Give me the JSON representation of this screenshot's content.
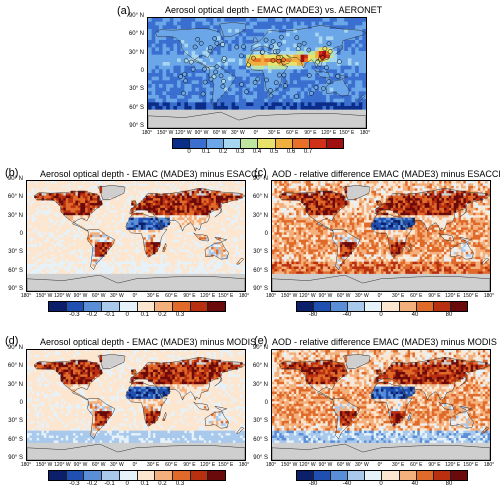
{
  "panels": [
    {
      "label": "(a)",
      "title": "Aerosol optical depth - EMAC (MADE3) vs. AERONET",
      "colorbar_labels": [
        "0",
        "0.1",
        "0.2",
        "0.3",
        "0.4",
        "0.5",
        "0.6",
        "0.7"
      ],
      "colorbar_colors": [
        "#0b2d8a",
        "#3a6fd0",
        "#6aa6e8",
        "#a6d6f0",
        "#bfe6a0",
        "#e8e26a",
        "#f0b040",
        "#e87028",
        "#d03018",
        "#a01010"
      ],
      "field": "aod"
    },
    {
      "label": "(b)",
      "title": "Aerosol optical depth - EMAC (MADE3) minus ESACCI",
      "colorbar_labels": [
        "-0.3",
        "-0.2",
        "-0.1",
        "0",
        "0.1",
        "0.2",
        "0.3"
      ],
      "colorbar_colors": [
        "#0b1f6a",
        "#1f4fb0",
        "#5a8fd8",
        "#a8c8ec",
        "#e6f2fa",
        "#fde6d0",
        "#f4b07c",
        "#e06a2a",
        "#b83010",
        "#6a0a0a"
      ],
      "field": "diff_esacci"
    },
    {
      "label": "(c)",
      "title": "AOD - relative difference EMAC (MADE3) minus ESACCI [%]",
      "colorbar_labels": [
        "-80",
        "-40",
        "0",
        "40",
        "80"
      ],
      "colorbar_colors": [
        "#0b1f6a",
        "#1f4fb0",
        "#5a8fd8",
        "#a8c8ec",
        "#e6f2fa",
        "#fde6d0",
        "#f4b07c",
        "#e06a2a",
        "#b83010",
        "#6a0a0a"
      ],
      "field": "rel_esacci"
    },
    {
      "label": "(d)",
      "title": "Aerosol optical depth - EMAC (MADE3) minus MODIS",
      "colorbar_labels": [
        "-0.3",
        "-0.2",
        "-0.1",
        "0",
        "0.1",
        "0.2",
        "0.3"
      ],
      "colorbar_colors": [
        "#0b1f6a",
        "#1f4fb0",
        "#5a8fd8",
        "#a8c8ec",
        "#e6f2fa",
        "#fde6d0",
        "#f4b07c",
        "#e06a2a",
        "#b83010",
        "#6a0a0a"
      ],
      "field": "diff_modis"
    },
    {
      "label": "(e)",
      "title": "AOD - relative difference EMAC (MADE3) minus MODIS [%]",
      "colorbar_labels": [
        "-80",
        "-40",
        "0",
        "40",
        "80"
      ],
      "colorbar_colors": [
        "#0b1f6a",
        "#1f4fb0",
        "#5a8fd8",
        "#a8c8ec",
        "#e6f2fa",
        "#fde6d0",
        "#f4b07c",
        "#e06a2a",
        "#b83010",
        "#6a0a0a"
      ],
      "field": "rel_modis"
    }
  ],
  "lat_labels": [
    "90° N",
    "60° N",
    "30° N",
    "0",
    "30° S",
    "60° S",
    "90° S"
  ],
  "lon_labels": [
    "180°",
    "150° W",
    "120° W",
    "90° W",
    "60° W",
    "30° W",
    "0°",
    "30° E",
    "60° E",
    "90° E",
    "120° E",
    "150° E",
    "180°"
  ],
  "land_color": "#cfcfcf",
  "coast_color": "#333333"
}
